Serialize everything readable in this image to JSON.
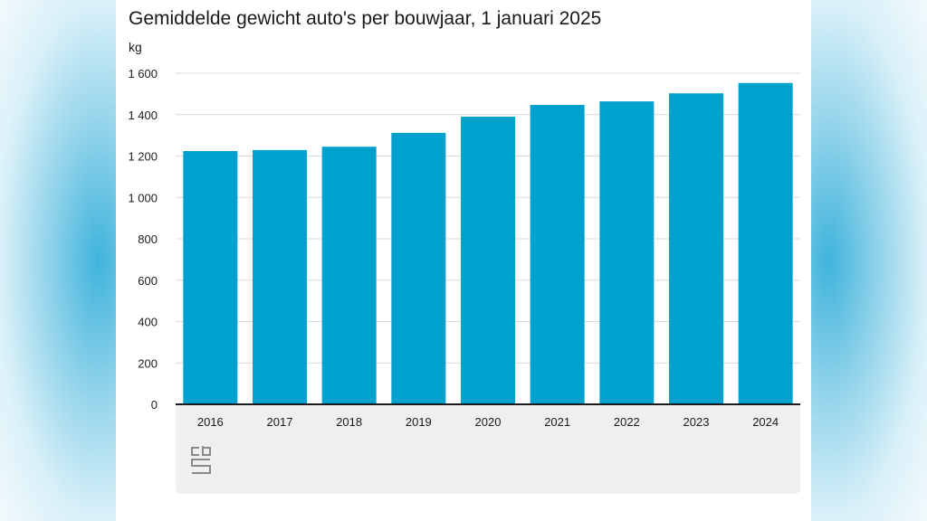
{
  "colors": {
    "bar": "#00a1cd",
    "grid": "#d9d9d9",
    "axis": "#1a1a1a",
    "footer": "#efefef"
  },
  "logo_icon": "cbs-logo-icon",
  "chart_data": {
    "type": "bar",
    "title": "Gemiddelde gewicht auto's per bouwjaar, 1 januari 2025",
    "ylabel": "kg",
    "xlabel": "",
    "categories": [
      "2016",
      "2017",
      "2018",
      "2019",
      "2020",
      "2021",
      "2022",
      "2023",
      "2024"
    ],
    "values": [
      1224,
      1229,
      1245,
      1312,
      1390,
      1447,
      1464,
      1503,
      1553
    ],
    "ylim": [
      0,
      1600
    ],
    "yticks": [
      0,
      200,
      400,
      600,
      800,
      1000,
      1200,
      1400,
      1600
    ],
    "ytick_labels": [
      "0",
      "200",
      "400",
      "600",
      "800",
      "1 000",
      "1 200",
      "1 400",
      "1 600"
    ],
    "grid": true,
    "legend": "none"
  }
}
